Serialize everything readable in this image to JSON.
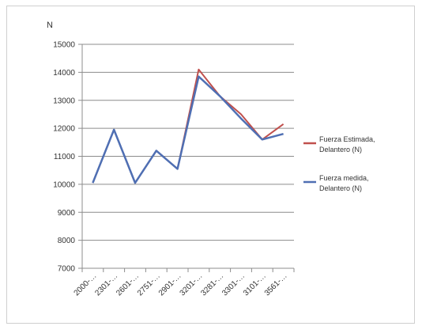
{
  "chart_data": {
    "type": "line",
    "title": "",
    "xlabel": "",
    "ylabel": "N",
    "ylim": [
      7000,
      15000
    ],
    "ytick_step": 1000,
    "grid": true,
    "legend_position": "right",
    "categories": [
      "2000-…",
      "2301-…",
      "2601-…",
      "2751-…",
      "2901-…",
      "3201-…",
      "3281-…",
      "3301-…",
      "3101-…",
      "3561-…"
    ],
    "series": [
      {
        "name": "Fuerza Estimada, Delantero (N)",
        "color": "#c0504d",
        "values": [
          10050,
          11950,
          10050,
          11200,
          10550,
          14100,
          13150,
          12500,
          11600,
          12150
        ]
      },
      {
        "name": "Fuerza medida, Delantero (N)",
        "color": "#4f6fb3",
        "values": [
          10050,
          11950,
          10050,
          11200,
          10550,
          13850,
          13150,
          12350,
          11600,
          11800
        ]
      }
    ]
  }
}
